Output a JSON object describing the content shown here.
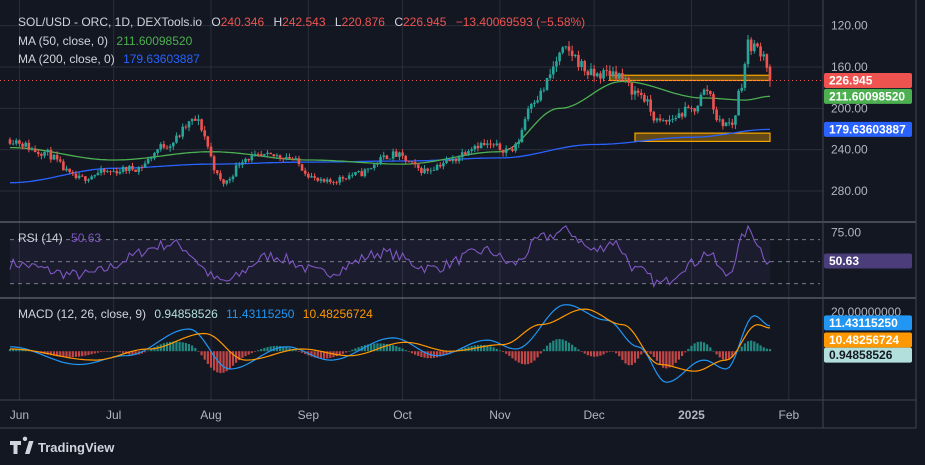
{
  "header": {
    "symbol": "SOL/USD - ORC, 1D, DEXTools.io",
    "o_label": "O",
    "o_value": "240.346",
    "h_label": "H",
    "h_value": "242.543",
    "l_label": "L",
    "l_value": "220.876",
    "c_label": "C",
    "c_value": "226.945",
    "change": "−13.40069593 (−5.58%)"
  },
  "indicators": {
    "ma50_label": "MA (50, close, 0)",
    "ma50_value": "211.60098520",
    "ma200_label": "MA (200, close, 0)",
    "ma200_value": "179.63603887",
    "rsi_label": "RSI (14)",
    "rsi_value": "50.63",
    "macd_label": "MACD (12, 26, close, 9)",
    "macd_hist_value": "0.94858526",
    "macd_value": "11.43115250",
    "macd_signal_value": "10.48256724"
  },
  "colors": {
    "background": "#131722",
    "up": "#26a69a",
    "down": "#ef5350",
    "ma50": "#4caf50",
    "ma200": "#2962ff",
    "rsi": "#7e57c2",
    "macd": "#2196f3",
    "signal": "#ff9800",
    "zone": "#f7a600",
    "grid": "#2a2e39",
    "text": "#d1d4dc",
    "axis_text": "#b2b5be"
  },
  "price_axis": {
    "ticks": [
      "280.00",
      "240.00",
      "200.00",
      "160.00",
      "120.00"
    ],
    "ylim": [
      90,
      300
    ]
  },
  "rsi_axis": {
    "ticks": [
      "75.00"
    ],
    "ylim": [
      17,
      86
    ]
  },
  "macd_axis": {
    "ticks": [
      "20.00000000"
    ],
    "ylim": [
      -22,
      24
    ]
  },
  "time_axis": [
    "Jun",
    "Jul",
    "Aug",
    "Sep",
    "Oct",
    "Nov",
    "Dec",
    "2025",
    "Feb"
  ],
  "badges": {
    "last_price": "226.945",
    "ma50": "211.60098520",
    "ma200": "179.63603887",
    "rsi": "50.63",
    "macd": "11.43115250",
    "signal": "10.48256724",
    "hist": "0.94858526"
  },
  "footer": {
    "brand": "TradingView"
  },
  "chart_data": {
    "type": "candlestick",
    "symbol": "SOL/USD",
    "timeframe": "1D",
    "x_start": "2024-05-29",
    "x_end": "2025-01-26",
    "price_ylim": [
      90,
      300
    ],
    "price_ticks": [
      120,
      160,
      200,
      240,
      280
    ],
    "close_anchors": [
      [
        "2024-05-29",
        170
      ],
      [
        "2024-06-08",
        158
      ],
      [
        "2024-06-20",
        132
      ],
      [
        "2024-06-28",
        138
      ],
      [
        "2024-07-08",
        142
      ],
      [
        "2024-07-18",
        165
      ],
      [
        "2024-07-27",
        188
      ],
      [
        "2024-08-05",
        128
      ],
      [
        "2024-08-12",
        152
      ],
      [
        "2024-08-24",
        154
      ],
      [
        "2024-09-06",
        128
      ],
      [
        "2024-09-16",
        136
      ],
      [
        "2024-09-28",
        155
      ],
      [
        "2024-10-08",
        140
      ],
      [
        "2024-10-15",
        148
      ],
      [
        "2024-10-25",
        165
      ],
      [
        "2024-11-05",
        160
      ],
      [
        "2024-11-12",
        210
      ],
      [
        "2024-11-22",
        255
      ],
      [
        "2024-12-01",
        232
      ],
      [
        "2024-12-07",
        235
      ],
      [
        "2024-12-15",
        215
      ],
      [
        "2024-12-22",
        186
      ],
      [
        "2025-01-01",
        198
      ],
      [
        "2025-01-06",
        218
      ],
      [
        "2025-01-10",
        186
      ],
      [
        "2025-01-14",
        185
      ],
      [
        "2025-01-17",
        225
      ],
      [
        "2025-01-19",
        262
      ],
      [
        "2025-01-24",
        255
      ],
      [
        "2025-01-26",
        226.945
      ]
    ],
    "last_ohlc": {
      "open": 240.346,
      "high": 242.543,
      "low": 220.876,
      "close": 226.945
    },
    "ma50": {
      "name": "MA (50, close, 0)",
      "last": 211.6009852,
      "points": [
        [
          "2024-05-29",
          162
        ],
        [
          "2024-07-01",
          150
        ],
        [
          "2024-08-01",
          158
        ],
        [
          "2024-09-01",
          150
        ],
        [
          "2024-10-01",
          146
        ],
        [
          "2024-11-01",
          158
        ],
        [
          "2024-11-20",
          200
        ],
        [
          "2024-12-10",
          226
        ],
        [
          "2025-01-05",
          210
        ],
        [
          "2025-01-18",
          208
        ],
        [
          "2025-01-26",
          211.6
        ]
      ]
    },
    "ma200": {
      "name": "MA (200, close, 0)",
      "last": 179.63603887,
      "points": [
        [
          "2024-05-29",
          128
        ],
        [
          "2024-07-01",
          142
        ],
        [
          "2024-08-01",
          146
        ],
        [
          "2024-09-01",
          148
        ],
        [
          "2024-10-01",
          149
        ],
        [
          "2024-11-01",
          152
        ],
        [
          "2024-12-01",
          165
        ],
        [
          "2025-01-01",
          172
        ],
        [
          "2025-01-26",
          179.64
        ]
      ]
    },
    "resistance_zone": {
      "start": "2024-12-06",
      "end": "2025-01-26",
      "low": 227,
      "high": 232
    },
    "support_zone": {
      "start": "2024-12-14",
      "end": "2025-01-26",
      "low": 168,
      "high": 176
    },
    "last_price_line": 226.945,
    "rsi": {
      "period": 14,
      "last": 50.63,
      "upper": 70,
      "mid": 50,
      "lower": 30,
      "ylim": [
        17,
        86
      ],
      "anchors": [
        [
          "2024-05-29",
          48
        ],
        [
          "2024-06-20",
          38
        ],
        [
          "2024-07-20",
          66
        ],
        [
          "2024-08-05",
          32
        ],
        [
          "2024-08-20",
          55
        ],
        [
          "2024-09-06",
          40
        ],
        [
          "2024-09-25",
          58
        ],
        [
          "2024-10-10",
          44
        ],
        [
          "2024-10-28",
          60
        ],
        [
          "2024-11-05",
          48
        ],
        [
          "2024-11-15",
          72
        ],
        [
          "2024-11-22",
          78
        ],
        [
          "2024-12-01",
          60
        ],
        [
          "2024-12-07",
          68
        ],
        [
          "2024-12-15",
          42
        ],
        [
          "2024-12-22",
          30
        ],
        [
          "2025-01-01",
          48
        ],
        [
          "2025-01-06",
          58
        ],
        [
          "2025-01-12",
          38
        ],
        [
          "2025-01-19",
          78
        ],
        [
          "2025-01-26",
          50.63
        ]
      ]
    },
    "macd": {
      "params": "12, 26, close, 9",
      "macd_last": 11.4311525,
      "signal_last": 10.48256724,
      "hist_last": 0.94858526,
      "ylim": [
        -22,
        24
      ],
      "macd_anchors": [
        [
          "2024-05-29",
          2
        ],
        [
          "2024-06-20",
          -6
        ],
        [
          "2024-07-05",
          -2
        ],
        [
          "2024-07-25",
          10
        ],
        [
          "2024-08-07",
          -8
        ],
        [
          "2024-08-25",
          2
        ],
        [
          "2024-09-08",
          -4
        ],
        [
          "2024-09-28",
          6
        ],
        [
          "2024-10-12",
          -2
        ],
        [
          "2024-10-28",
          5
        ],
        [
          "2024-11-06",
          1
        ],
        [
          "2024-11-22",
          21
        ],
        [
          "2024-12-05",
          14
        ],
        [
          "2024-12-15",
          2
        ],
        [
          "2024-12-24",
          -14
        ],
        [
          "2025-01-05",
          -4
        ],
        [
          "2025-01-12",
          -8
        ],
        [
          "2025-01-21",
          16
        ],
        [
          "2025-01-26",
          11.43
        ]
      ],
      "signal_anchors": [
        [
          "2024-05-29",
          1
        ],
        [
          "2024-06-25",
          -4
        ],
        [
          "2024-07-12",
          1
        ],
        [
          "2024-07-30",
          8
        ],
        [
          "2024-08-12",
          -4
        ],
        [
          "2024-08-30",
          1
        ],
        [
          "2024-09-14",
          -2
        ],
        [
          "2024-10-02",
          4
        ],
        [
          "2024-10-16",
          0
        ],
        [
          "2024-11-02",
          3
        ],
        [
          "2024-11-14",
          12
        ],
        [
          "2024-11-28",
          19
        ],
        [
          "2024-12-10",
          12
        ],
        [
          "2024-12-22",
          -6
        ],
        [
          "2025-01-02",
          -9
        ],
        [
          "2025-01-12",
          -4
        ],
        [
          "2025-01-22",
          12
        ],
        [
          "2025-01-26",
          10.48
        ]
      ]
    }
  }
}
